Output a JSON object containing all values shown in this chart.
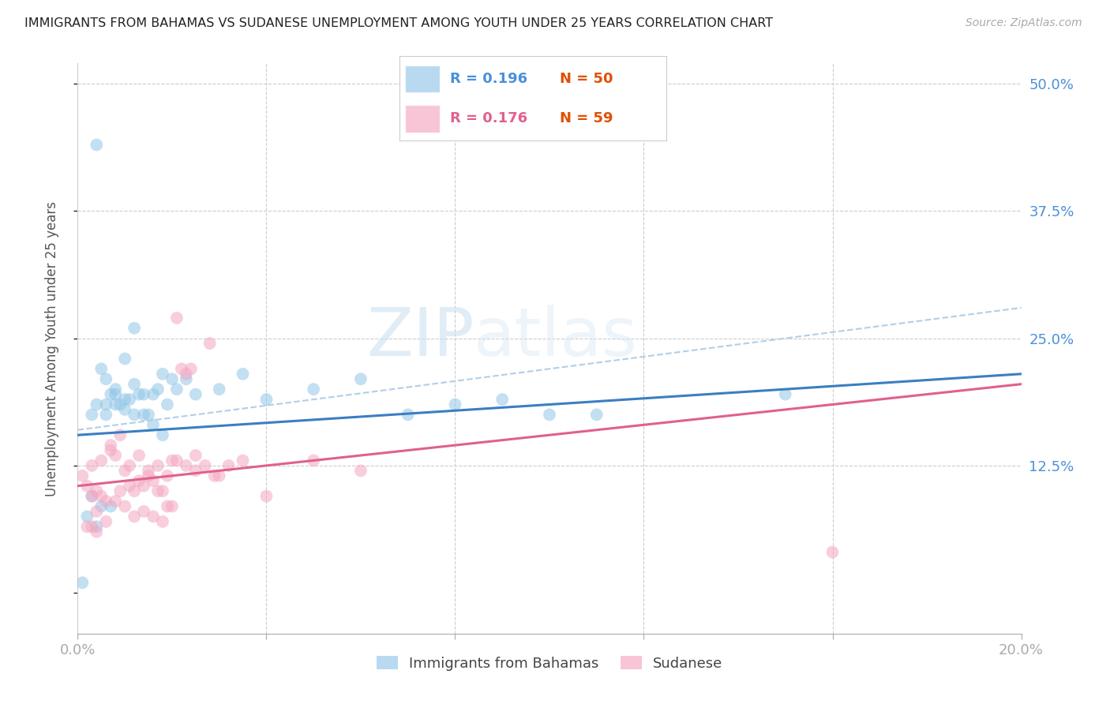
{
  "title": "IMMIGRANTS FROM BAHAMAS VS SUDANESE UNEMPLOYMENT AMONG YOUTH UNDER 25 YEARS CORRELATION CHART",
  "source": "Source: ZipAtlas.com",
  "ylabel": "Unemployment Among Youth under 25 years",
  "x_min": 0.0,
  "x_max": 0.2,
  "y_min": -0.04,
  "y_max": 0.52,
  "color_blue": "#93c6e8",
  "color_pink": "#f4a6c0",
  "color_blue_line": "#3a7fc1",
  "color_pink_line": "#e06090",
  "color_blue_dashed": "#b0cfe8",
  "watermark_zip": "ZIP",
  "watermark_atlas": "atlas",
  "bahamas_x": [
    0.004,
    0.012,
    0.01,
    0.008,
    0.006,
    0.005,
    0.003,
    0.007,
    0.009,
    0.011,
    0.013,
    0.015,
    0.017,
    0.019,
    0.021,
    0.023,
    0.006,
    0.008,
    0.01,
    0.012,
    0.014,
    0.016,
    0.018,
    0.02,
    0.025,
    0.03,
    0.035,
    0.04,
    0.05,
    0.06,
    0.004,
    0.006,
    0.008,
    0.01,
    0.012,
    0.014,
    0.016,
    0.018,
    0.07,
    0.08,
    0.09,
    0.1,
    0.003,
    0.005,
    0.007,
    0.002,
    0.004,
    0.15,
    0.001,
    0.11
  ],
  "bahamas_y": [
    0.44,
    0.26,
    0.23,
    0.2,
    0.21,
    0.22,
    0.175,
    0.195,
    0.185,
    0.19,
    0.195,
    0.175,
    0.2,
    0.185,
    0.2,
    0.21,
    0.185,
    0.195,
    0.19,
    0.205,
    0.195,
    0.195,
    0.215,
    0.21,
    0.195,
    0.2,
    0.215,
    0.19,
    0.2,
    0.21,
    0.185,
    0.175,
    0.185,
    0.18,
    0.175,
    0.175,
    0.165,
    0.155,
    0.175,
    0.185,
    0.19,
    0.175,
    0.095,
    0.085,
    0.085,
    0.075,
    0.065,
    0.195,
    0.01,
    0.175
  ],
  "sudanese_x": [
    0.002,
    0.003,
    0.004,
    0.005,
    0.006,
    0.007,
    0.008,
    0.009,
    0.01,
    0.011,
    0.012,
    0.013,
    0.014,
    0.015,
    0.016,
    0.017,
    0.018,
    0.019,
    0.02,
    0.021,
    0.022,
    0.023,
    0.024,
    0.025,
    0.003,
    0.005,
    0.007,
    0.009,
    0.011,
    0.013,
    0.015,
    0.017,
    0.019,
    0.021,
    0.023,
    0.025,
    0.027,
    0.029,
    0.03,
    0.035,
    0.028,
    0.032,
    0.004,
    0.006,
    0.008,
    0.01,
    0.012,
    0.014,
    0.016,
    0.018,
    0.02,
    0.04,
    0.05,
    0.06,
    0.002,
    0.004,
    0.16,
    0.001,
    0.003
  ],
  "sudanese_y": [
    0.105,
    0.095,
    0.1,
    0.095,
    0.09,
    0.14,
    0.135,
    0.1,
    0.12,
    0.105,
    0.1,
    0.11,
    0.105,
    0.115,
    0.11,
    0.1,
    0.1,
    0.115,
    0.13,
    0.27,
    0.22,
    0.215,
    0.22,
    0.12,
    0.125,
    0.13,
    0.145,
    0.155,
    0.125,
    0.135,
    0.12,
    0.125,
    0.085,
    0.13,
    0.125,
    0.135,
    0.125,
    0.115,
    0.115,
    0.13,
    0.245,
    0.125,
    0.08,
    0.07,
    0.09,
    0.085,
    0.075,
    0.08,
    0.075,
    0.07,
    0.085,
    0.095,
    0.13,
    0.12,
    0.065,
    0.06,
    0.04,
    0.115,
    0.065
  ]
}
